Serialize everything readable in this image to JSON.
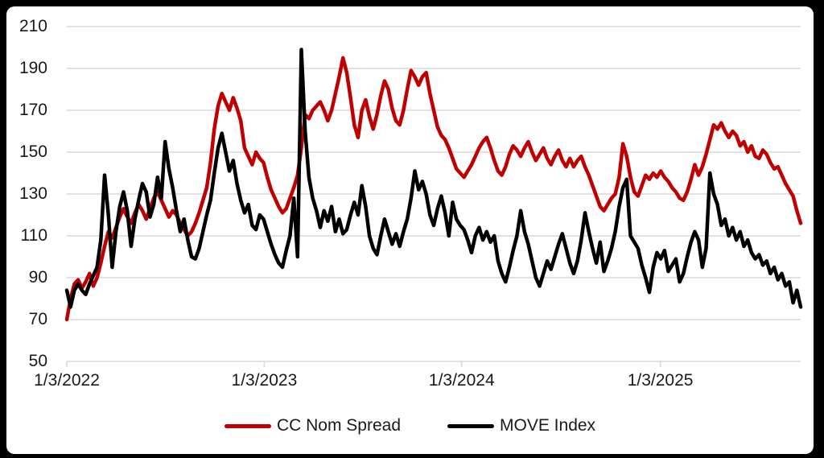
{
  "chart_data": {
    "type": "line",
    "title": "",
    "xlabel": "",
    "ylabel": "",
    "ylim": [
      50,
      210
    ],
    "y_ticks": [
      210,
      190,
      170,
      150,
      130,
      110,
      90,
      70,
      50
    ],
    "x_ticks": [
      {
        "label": "1/3/2022",
        "week": 0
      },
      {
        "label": "1/3/2023",
        "week": 52.2
      },
      {
        "label": "1/3/2024",
        "week": 104.4
      },
      {
        "label": "1/3/2025",
        "week": 156.9
      }
    ],
    "x_start": "1/3/2022",
    "x_end": "9/22/2025",
    "x_interval": "weekly",
    "grid": true,
    "legend_position": "bottom-center",
    "grid_color": "#D9D9D9",
    "series": [
      {
        "name": "CC Nom Spread",
        "color": "#C00000",
        "values": [
          70,
          80,
          87,
          89,
          85,
          88,
          92,
          86,
          90,
          97,
          105,
          112,
          109,
          114,
          119,
          123,
          119,
          116,
          121,
          125,
          122,
          118,
          123,
          128,
          131,
          127,
          123,
          119,
          122,
          120,
          116,
          113,
          110,
          112,
          116,
          121,
          127,
          133,
          145,
          161,
          172,
          178,
          174,
          170,
          176,
          171,
          165,
          152,
          148,
          144,
          150,
          147,
          145,
          138,
          132,
          128,
          124,
          121,
          123,
          128,
          133,
          139,
          152,
          168,
          166,
          170,
          172,
          174,
          170,
          165,
          170,
          178,
          186,
          195,
          188,
          176,
          163,
          157,
          170,
          175,
          167,
          161,
          168,
          177,
          184,
          180,
          171,
          165,
          163,
          170,
          180,
          189,
          186,
          182,
          186,
          188,
          178,
          170,
          162,
          158,
          156,
          152,
          147,
          142,
          140,
          138,
          141,
          144,
          148,
          152,
          155,
          157,
          152,
          146,
          141,
          139,
          143,
          149,
          153,
          151,
          148,
          152,
          155,
          150,
          146,
          149,
          152,
          147,
          144,
          148,
          151,
          146,
          143,
          147,
          143,
          146,
          148,
          143,
          139,
          134,
          129,
          124,
          122,
          125,
          128,
          130,
          138,
          154,
          148,
          138,
          131,
          129,
          134,
          139,
          137,
          140,
          138,
          141,
          138,
          136,
          133,
          131,
          128,
          127,
          131,
          137,
          144,
          139,
          143,
          149,
          156,
          163,
          161,
          164,
          160,
          157,
          160,
          158,
          153,
          155,
          150,
          153,
          148,
          147,
          151,
          149,
          145,
          142,
          143,
          139,
          135,
          132,
          129,
          122,
          116
        ]
      },
      {
        "name": "MOVE Index",
        "color": "#000000",
        "values": [
          84,
          76,
          84,
          87,
          84,
          82,
          87,
          91,
          95,
          108,
          139,
          120,
          95,
          112,
          124,
          131,
          122,
          105,
          118,
          127,
          135,
          131,
          119,
          125,
          138,
          128,
          155,
          142,
          133,
          122,
          112,
          118,
          108,
          100,
          99,
          104,
          112,
          120,
          127,
          140,
          152,
          159,
          150,
          141,
          146,
          135,
          127,
          121,
          125,
          115,
          113,
          120,
          118,
          112,
          106,
          101,
          97,
          95,
          103,
          110,
          128,
          100,
          199,
          160,
          138,
          128,
          122,
          114,
          122,
          117,
          124,
          112,
          118,
          111,
          113,
          120,
          126,
          120,
          134,
          124,
          110,
          104,
          101,
          110,
          118,
          112,
          106,
          111,
          105,
          112,
          118,
          128,
          141,
          132,
          136,
          130,
          120,
          115,
          123,
          129,
          121,
          110,
          126,
          118,
          115,
          113,
          108,
          102,
          110,
          114,
          108,
          112,
          107,
          110,
          98,
          92,
          88,
          95,
          103,
          110,
          122,
          112,
          106,
          98,
          90,
          86,
          92,
          98,
          94,
          100,
          106,
          111,
          104,
          97,
          92,
          98,
          108,
          121,
          112,
          104,
          97,
          107,
          93,
          98,
          104,
          112,
          124,
          133,
          137,
          110,
          107,
          104,
          96,
          90,
          83,
          95,
          102,
          99,
          103,
          93,
          96,
          99,
          88,
          92,
          100,
          107,
          112,
          108,
          95,
          104,
          140,
          130,
          125,
          115,
          118,
          110,
          114,
          108,
          112,
          105,
          108,
          102,
          99,
          101,
          96,
          98,
          92,
          95,
          89,
          92,
          86,
          88,
          78,
          84,
          76
        ]
      }
    ]
  },
  "legend": {
    "entries": [
      {
        "label": "CC Nom Spread"
      },
      {
        "label": "MOVE Index"
      }
    ]
  }
}
